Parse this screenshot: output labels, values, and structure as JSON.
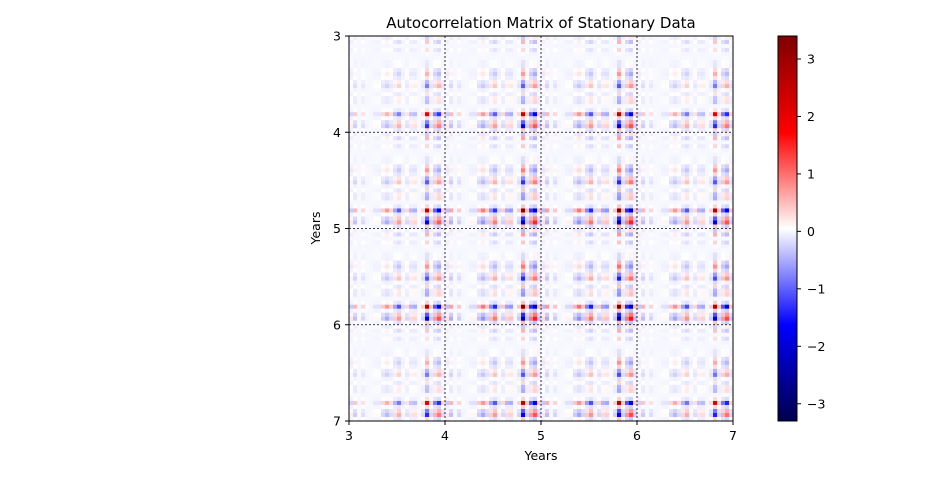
{
  "chart_data": {
    "type": "heatmap",
    "title": "Autocorrelation Matrix of Stationary Data",
    "xlabel": "Years",
    "ylabel": "Years",
    "xlim": [
      3,
      7
    ],
    "ylim": [
      7,
      3
    ],
    "x_ticks": [
      "3",
      "4",
      "5",
      "6",
      "7"
    ],
    "y_ticks": [
      "3",
      "4",
      "5",
      "6",
      "7"
    ],
    "y_axis_inverted": true,
    "grid": "dashed lines at integer years",
    "colormap": "seismic",
    "colormap_stops": [
      "#00004c",
      "#0000ff",
      "#ffffff",
      "#ff0000",
      "#7f0000"
    ],
    "colorbar": {
      "vmin": -3.3,
      "vmax": 3.4,
      "ticks": [
        -3,
        -2,
        -1,
        0,
        1,
        2,
        3
      ],
      "tick_labels": [
        "−3",
        "−2",
        "−1",
        "0",
        "1",
        "2",
        "3"
      ]
    },
    "pattern": {
      "band_period_years": 1.0,
      "positive_band_phase": 0.82,
      "negative_band_phase": 0.92,
      "peak_value": 2.6
    }
  }
}
